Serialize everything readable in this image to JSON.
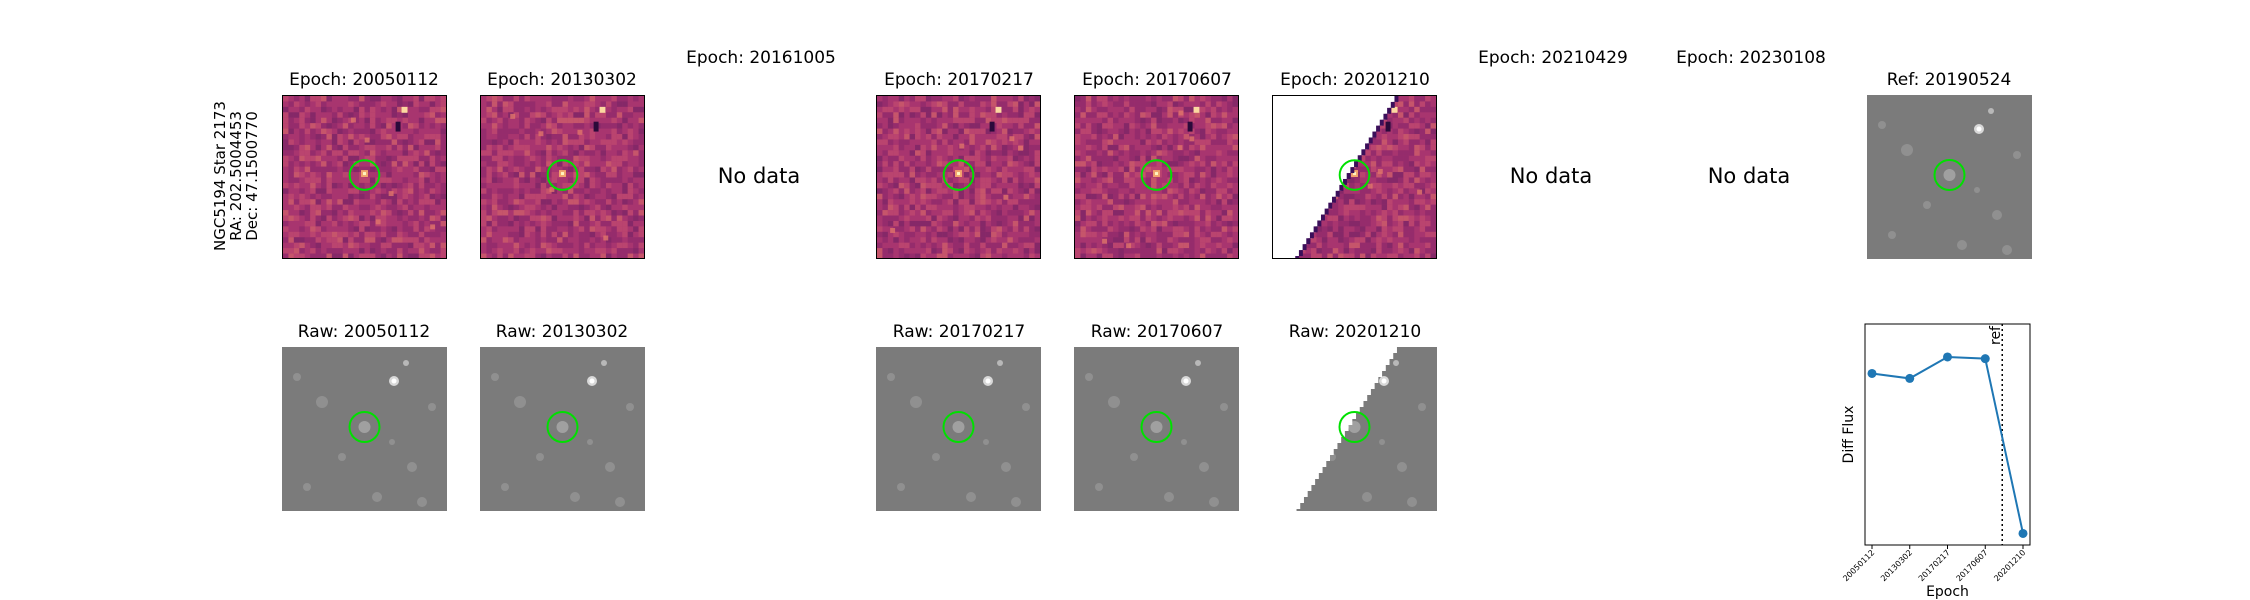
{
  "star_info": {
    "name": "NGC5194 Star 2173",
    "ra": "RA: 202.5004453",
    "dec": "Dec: 47.1500770"
  },
  "epoch_titles": [
    "Epoch: 20050112",
    "Epoch: 20130302",
    "Epoch: 20161005",
    "Epoch: 20170217",
    "Epoch: 20170607",
    "Epoch: 20201210",
    "Epoch: 20210429",
    "Epoch: 20230108"
  ],
  "ref_title": "Ref: 20190524",
  "raw_titles": [
    "Raw: 20050112",
    "Raw: 20130302",
    "Raw: 20170217",
    "Raw: 20170607",
    "Raw: 20201210"
  ],
  "no_data_label": "No data",
  "colors": {
    "diff_background": "#a8356f",
    "raw_background": "#7b7b7b",
    "marker_circle": "#00e000",
    "line": "#1f77b4"
  },
  "chart_data": {
    "type": "line",
    "categories": [
      "20050112",
      "20130302",
      "20170217",
      "20170607",
      "20201210"
    ],
    "values": [
      0.72,
      0.69,
      0.82,
      0.81,
      -0.25
    ],
    "xlabel": "Epoch",
    "ylabel": "Diff Flux",
    "ylim": [
      -0.32,
      1.02
    ],
    "ref_line": {
      "label": "ref",
      "position_between": [
        "20170607",
        "20201210"
      ],
      "fraction": 0.45
    }
  }
}
